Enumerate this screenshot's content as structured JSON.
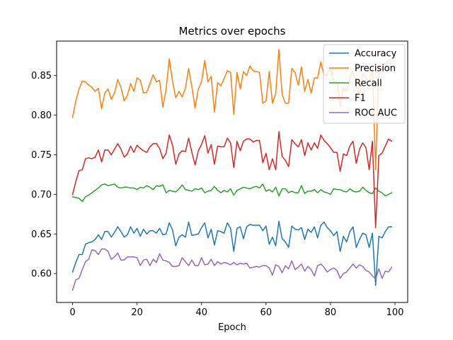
{
  "chart_data": {
    "type": "line",
    "title": "Metrics over epochs",
    "xlabel": "Epoch",
    "ylabel": "",
    "xlim": [
      -4.95,
      103.95
    ],
    "ylim": [
      0.5635,
      0.8935
    ],
    "xticks": [
      0,
      20,
      40,
      60,
      80,
      100
    ],
    "yticks": [
      0.6,
      0.65,
      0.7,
      0.75,
      0.8,
      0.85
    ],
    "grid": false,
    "legend": "top-right",
    "series": [
      {
        "name": "Accuracy",
        "color": "#1f77b4",
        "values": [
          0.602,
          0.614,
          0.624,
          0.624,
          0.637,
          0.639,
          0.64,
          0.643,
          0.649,
          0.643,
          0.653,
          0.653,
          0.646,
          0.652,
          0.659,
          0.653,
          0.646,
          0.649,
          0.659,
          0.651,
          0.657,
          0.647,
          0.656,
          0.65,
          0.654,
          0.654,
          0.651,
          0.657,
          0.649,
          0.65,
          0.664,
          0.655,
          0.635,
          0.646,
          0.649,
          0.646,
          0.665,
          0.648,
          0.649,
          0.65,
          0.658,
          0.664,
          0.645,
          0.656,
          0.636,
          0.654,
          0.653,
          0.651,
          0.664,
          0.657,
          0.628,
          0.657,
          0.659,
          0.644,
          0.659,
          0.662,
          0.661,
          0.661,
          0.661,
          0.654,
          0.66,
          0.637,
          0.646,
          0.635,
          0.666,
          0.644,
          0.64,
          0.633,
          0.66,
          0.656,
          0.655,
          0.658,
          0.643,
          0.656,
          0.652,
          0.659,
          0.645,
          0.661,
          0.665,
          0.658,
          0.654,
          0.648,
          0.653,
          0.628,
          0.647,
          0.64,
          0.653,
          0.659,
          0.633,
          0.643,
          0.651,
          0.649,
          0.633,
          0.651,
          0.585,
          0.647,
          0.645,
          0.653,
          0.659,
          0.659
        ]
      },
      {
        "name": "Precision",
        "color": "#ff7f0e",
        "values": [
          0.797,
          0.818,
          0.833,
          0.843,
          0.842,
          0.838,
          0.835,
          0.83,
          0.834,
          0.808,
          0.828,
          0.833,
          0.82,
          0.828,
          0.845,
          0.835,
          0.818,
          0.825,
          0.84,
          0.83,
          0.847,
          0.844,
          0.828,
          0.829,
          0.84,
          0.851,
          0.842,
          0.844,
          0.81,
          0.832,
          0.871,
          0.843,
          0.822,
          0.83,
          0.823,
          0.834,
          0.859,
          0.836,
          0.809,
          0.833,
          0.842,
          0.869,
          0.842,
          0.849,
          0.804,
          0.841,
          0.837,
          0.846,
          0.856,
          0.854,
          0.801,
          0.854,
          0.833,
          0.855,
          0.85,
          0.862,
          0.856,
          0.855,
          0.854,
          0.815,
          0.818,
          0.855,
          0.815,
          0.827,
          0.883,
          0.826,
          0.815,
          0.815,
          0.859,
          0.854,
          0.838,
          0.861,
          0.83,
          0.845,
          0.828,
          0.847,
          0.847,
          0.867,
          0.85,
          0.851,
          0.86,
          0.843,
          0.842,
          0.811,
          0.835,
          0.83,
          0.847,
          0.856,
          0.836,
          0.827,
          0.852,
          0.848,
          0.842,
          0.86,
          0.731,
          0.861,
          0.861,
          0.865,
          0.869,
          0.87
        ]
      },
      {
        "name": "Recall",
        "color": "#2ca02c",
        "values": [
          0.697,
          0.696,
          0.695,
          0.691,
          0.697,
          0.699,
          0.702,
          0.705,
          0.708,
          0.712,
          0.713,
          0.711,
          0.712,
          0.713,
          0.709,
          0.708,
          0.709,
          0.709,
          0.708,
          0.708,
          0.706,
          0.709,
          0.708,
          0.711,
          0.709,
          0.706,
          0.711,
          0.71,
          0.712,
          0.702,
          0.705,
          0.704,
          0.703,
          0.707,
          0.712,
          0.706,
          0.705,
          0.704,
          0.707,
          0.706,
          0.708,
          0.702,
          0.704,
          0.705,
          0.71,
          0.705,
          0.702,
          0.705,
          0.703,
          0.707,
          0.699,
          0.705,
          0.707,
          0.709,
          0.708,
          0.707,
          0.709,
          0.71,
          0.708,
          0.713,
          0.704,
          0.706,
          0.703,
          0.709,
          0.698,
          0.707,
          0.707,
          0.702,
          0.704,
          0.702,
          0.702,
          0.711,
          0.701,
          0.704,
          0.704,
          0.706,
          0.702,
          0.706,
          0.703,
          0.702,
          0.7,
          0.707,
          0.706,
          0.706,
          0.704,
          0.703,
          0.707,
          0.704,
          0.703,
          0.704,
          0.709,
          0.705,
          0.702,
          0.701,
          0.708,
          0.704,
          0.702,
          0.698,
          0.7,
          0.702
        ]
      },
      {
        "name": "F1",
        "color": "#d62728",
        "values": [
          0.7,
          0.716,
          0.73,
          0.731,
          0.745,
          0.746,
          0.745,
          0.747,
          0.756,
          0.741,
          0.756,
          0.756,
          0.75,
          0.757,
          0.764,
          0.757,
          0.747,
          0.751,
          0.761,
          0.753,
          0.762,
          0.758,
          0.755,
          0.753,
          0.76,
          0.764,
          0.764,
          0.758,
          0.745,
          0.752,
          0.775,
          0.762,
          0.738,
          0.751,
          0.755,
          0.754,
          0.771,
          0.753,
          0.737,
          0.755,
          0.763,
          0.774,
          0.752,
          0.763,
          0.738,
          0.761,
          0.76,
          0.76,
          0.771,
          0.765,
          0.734,
          0.767,
          0.755,
          0.767,
          0.77,
          0.77,
          0.766,
          0.768,
          0.768,
          0.74,
          0.752,
          0.731,
          0.745,
          0.731,
          0.779,
          0.748,
          0.743,
          0.735,
          0.769,
          0.764,
          0.76,
          0.769,
          0.749,
          0.765,
          0.756,
          0.765,
          0.758,
          0.775,
          0.768,
          0.764,
          0.759,
          0.753,
          0.753,
          0.729,
          0.751,
          0.749,
          0.761,
          0.767,
          0.739,
          0.757,
          0.765,
          0.759,
          0.731,
          0.767,
          0.658,
          0.749,
          0.752,
          0.761,
          0.77,
          0.767
        ]
      },
      {
        "name": "ROC AUC",
        "color": "#9467bd",
        "values": [
          0.579,
          0.592,
          0.594,
          0.605,
          0.615,
          0.618,
          0.63,
          0.629,
          0.624,
          0.631,
          0.631,
          0.628,
          0.618,
          0.621,
          0.626,
          0.617,
          0.617,
          0.621,
          0.621,
          0.621,
          0.62,
          0.61,
          0.617,
          0.618,
          0.61,
          0.618,
          0.614,
          0.625,
          0.617,
          0.616,
          0.614,
          0.609,
          0.609,
          0.61,
          0.62,
          0.615,
          0.61,
          0.617,
          0.61,
          0.61,
          0.62,
          0.611,
          0.612,
          0.618,
          0.61,
          0.615,
          0.612,
          0.614,
          0.613,
          0.611,
          0.614,
          0.611,
          0.613,
          0.612,
          0.613,
          0.607,
          0.608,
          0.609,
          0.608,
          0.61,
          0.61,
          0.607,
          0.598,
          0.611,
          0.609,
          0.601,
          0.61,
          0.606,
          0.616,
          0.605,
          0.608,
          0.612,
          0.603,
          0.609,
          0.605,
          0.597,
          0.61,
          0.612,
          0.608,
          0.602,
          0.605,
          0.607,
          0.604,
          0.594,
          0.6,
          0.602,
          0.607,
          0.612,
          0.607,
          0.611,
          0.609,
          0.604,
          0.602,
          0.597,
          0.593,
          0.606,
          0.594,
          0.603,
          0.602,
          0.608
        ]
      }
    ]
  }
}
